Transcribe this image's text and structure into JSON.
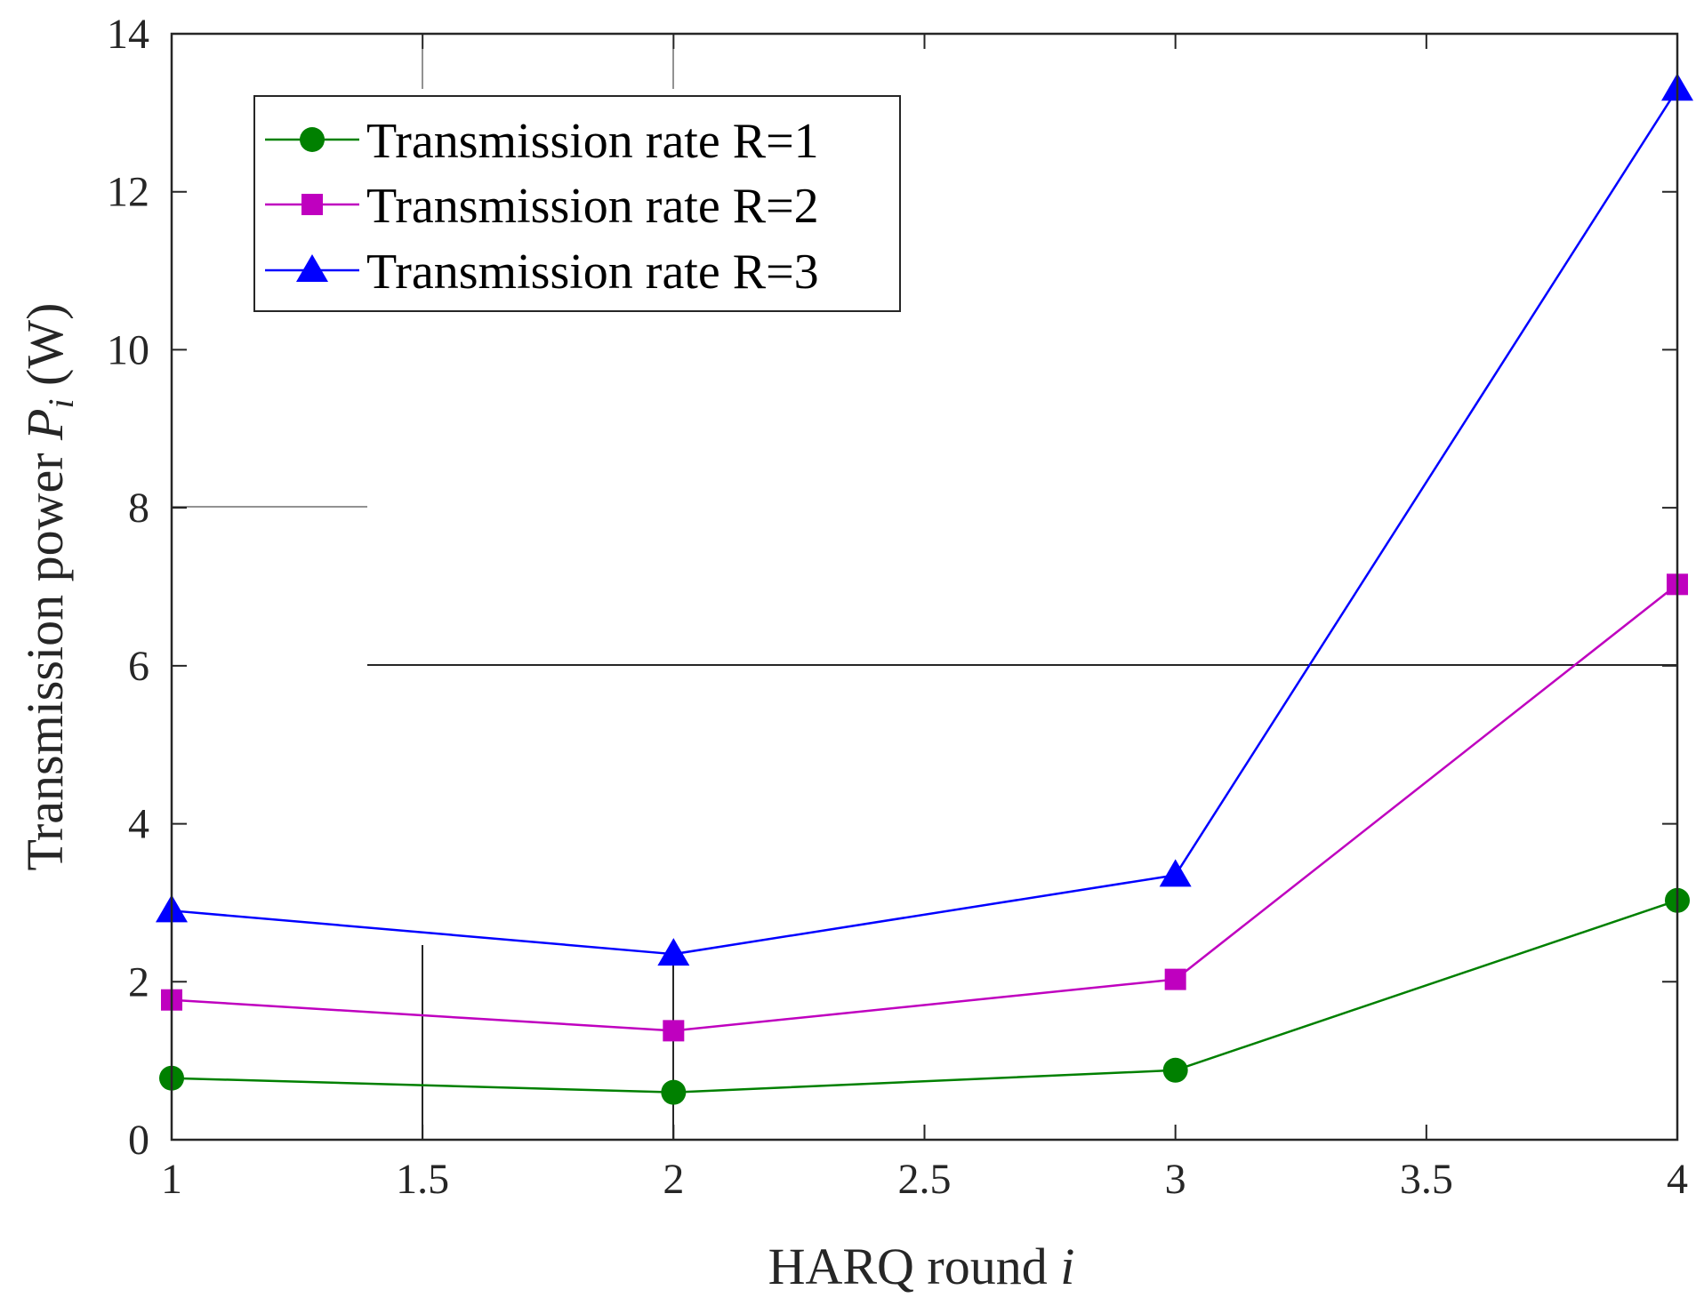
{
  "chart_data": {
    "type": "line",
    "title": "",
    "xlabel": "HARQ round",
    "xlabel_var": "i",
    "ylabel": "Transmission power",
    "ylabel_var": "P",
    "ylabel_sub": "i",
    "ylabel_unit": "(W)",
    "xlim": [
      1,
      4
    ],
    "ylim": [
      0,
      14
    ],
    "x_ticks": [
      1,
      1.5,
      2,
      2.5,
      3,
      3.5,
      4
    ],
    "x_tick_labels": [
      "1",
      "1.5",
      "2",
      "2.5",
      "3",
      "3.5",
      "4"
    ],
    "y_ticks": [
      0,
      2,
      4,
      6,
      8,
      10,
      12,
      14
    ],
    "y_tick_labels": [
      "0",
      "2",
      "4",
      "6",
      "8",
      "10",
      "12",
      "14"
    ],
    "grid": false,
    "legend_position": "top-left",
    "x": [
      1,
      2,
      3,
      4
    ],
    "series": [
      {
        "name": "Transmission rate R=1",
        "color": "#008000",
        "marker": "circle",
        "values": [
          0.78,
          0.6,
          0.88,
          3.03
        ]
      },
      {
        "name": "Transmission rate R=2",
        "color": "#bf00bf",
        "marker": "square",
        "values": [
          1.77,
          1.38,
          2.03,
          7.03
        ]
      },
      {
        "name": "Transmission rate R=3",
        "color": "#0000ff",
        "marker": "triangle",
        "values": [
          2.9,
          2.35,
          3.35,
          13.3
        ]
      }
    ]
  }
}
